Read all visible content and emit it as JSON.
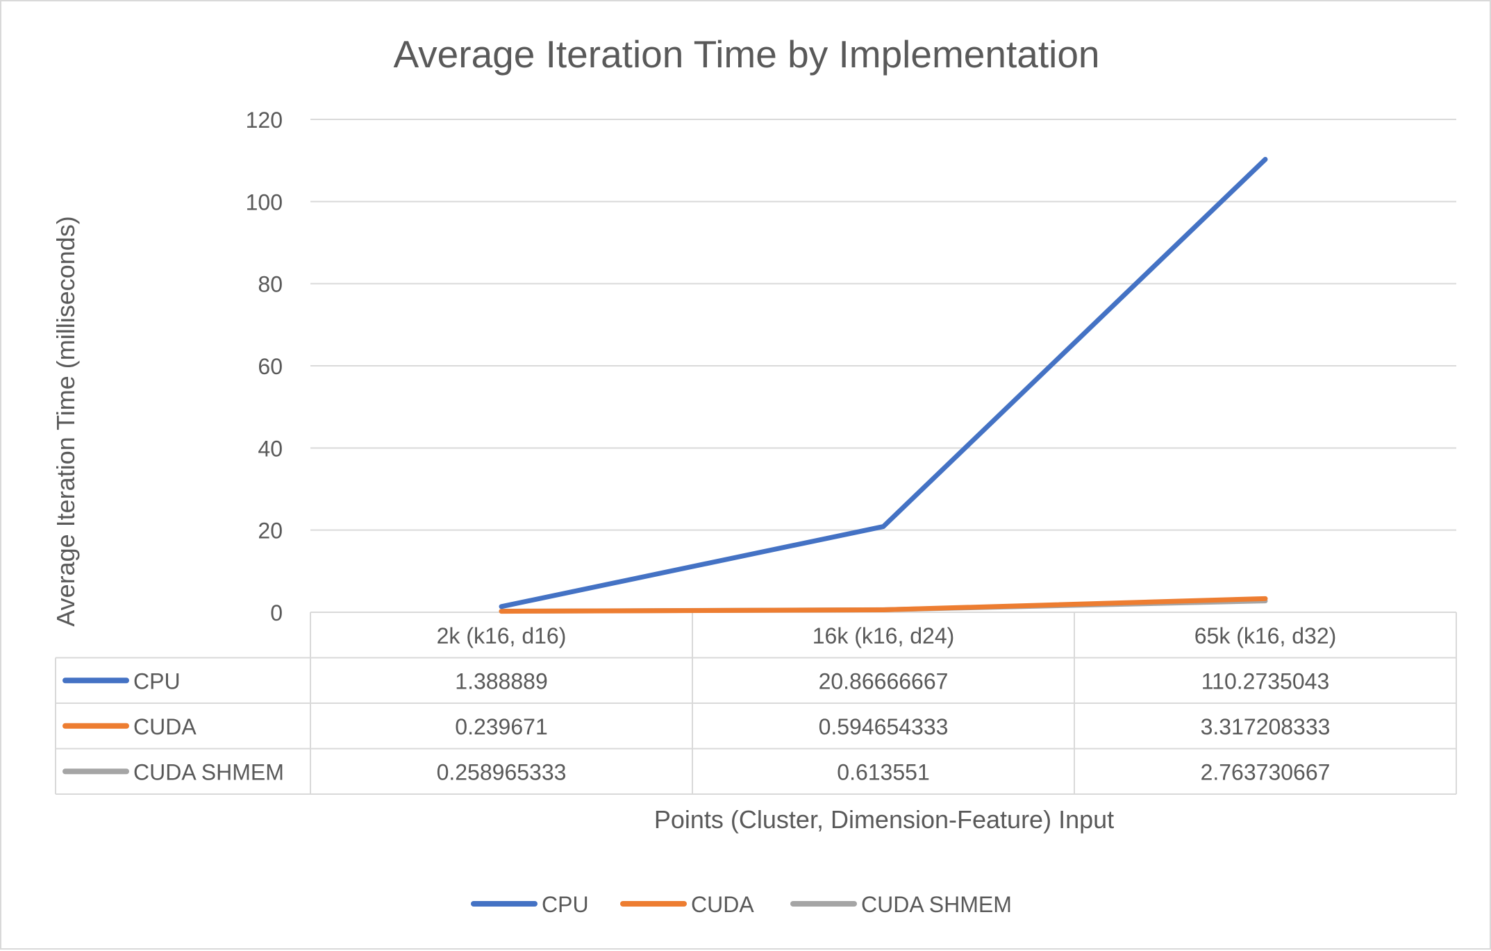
{
  "chart_data": {
    "type": "line",
    "title": "Average Iteration Time by Implementation",
    "xlabel": "Points (Cluster, Dimension-Feature) Input",
    "ylabel": "Average Iteration Time (milliseconds)",
    "categories": [
      "2k (k16, d16)",
      "16k (k16, d24)",
      "65k (k16, d32)"
    ],
    "ylim": [
      0,
      120
    ],
    "yticks": [
      0,
      20,
      40,
      60,
      80,
      100,
      120
    ],
    "ytick_labels": [
      "0",
      "20",
      "40",
      "60",
      "80",
      "100",
      "120"
    ],
    "grid": true,
    "legend": "bottom",
    "data_table": true,
    "series": [
      {
        "name": "CPU",
        "color": "#4472C4",
        "values": [
          1.388889,
          20.86666667,
          110.2735043
        ],
        "labels": [
          "1.388889",
          "20.86666667",
          "110.2735043"
        ]
      },
      {
        "name": "CUDA",
        "color": "#ED7D31",
        "values": [
          0.239671,
          0.594654333,
          3.317208333
        ],
        "labels": [
          "0.239671",
          "0.594654333",
          "3.317208333"
        ]
      },
      {
        "name": "CUDA SHMEM",
        "color": "#A5A5A5",
        "values": [
          0.258965333,
          0.613551,
          2.763730667
        ],
        "labels": [
          "0.258965333",
          "0.613551",
          "2.763730667"
        ]
      }
    ]
  }
}
